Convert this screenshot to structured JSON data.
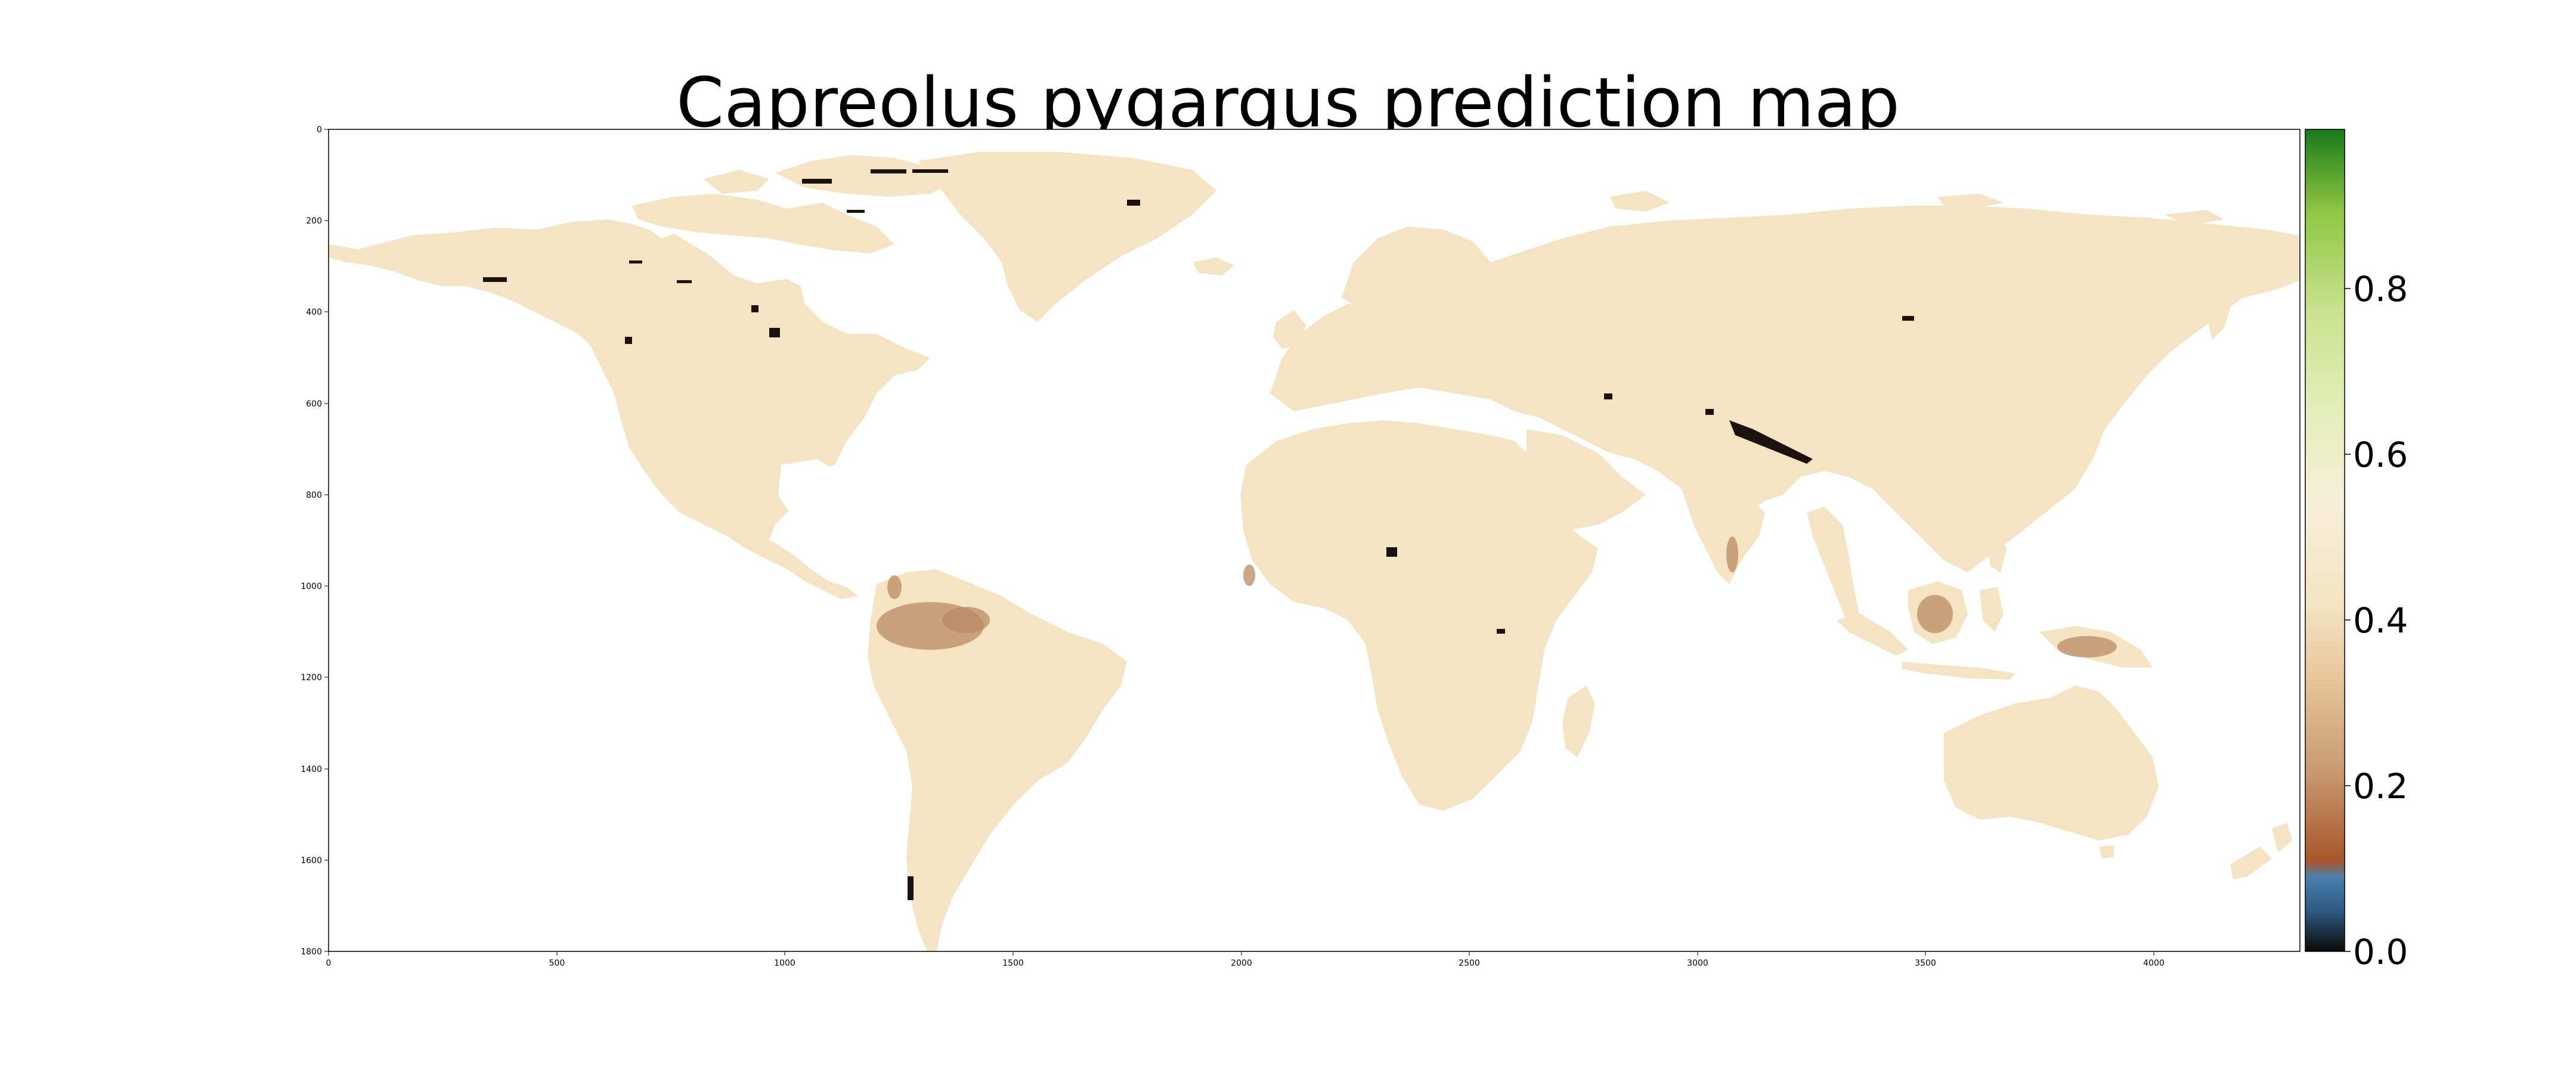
{
  "title": "Capreolus pygargus prediction map",
  "axes": {
    "x_ticks": [
      "0",
      "500",
      "1000",
      "1500",
      "2000",
      "2500",
      "3000",
      "3500",
      "4000"
    ],
    "y_ticks": [
      "0",
      "200",
      "400",
      "600",
      "800",
      "1000",
      "1200",
      "1400",
      "1600",
      "1800"
    ],
    "x_range": [
      0,
      4320
    ],
    "y_range": [
      0,
      1800
    ],
    "y_inverted": true
  },
  "colorbar": {
    "ticks": [
      "0.0",
      "0.2",
      "0.4",
      "0.6",
      "0.8"
    ],
    "range": [
      0,
      0.98
    ],
    "colors": {
      "low": "#0a0a0a",
      "blue": "#3a6f9c",
      "brown": "#a9562b",
      "tan": "#e9c99c",
      "cream": "#f6efd8",
      "light_green": "#c8e28f",
      "green": "#8fc742",
      "dark_green": "#1a7a1a"
    }
  },
  "map": {
    "land_color": "#f5e4c3",
    "background_color": "#ffffff",
    "dominant_value_range": [
      0.3,
      0.4
    ]
  }
}
